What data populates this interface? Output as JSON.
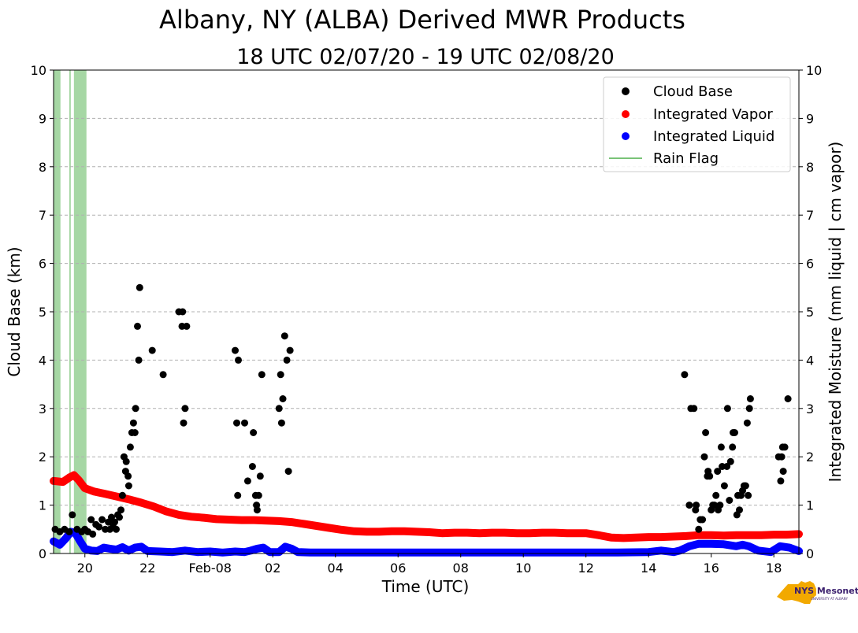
{
  "chart_data": {
    "type": "scatter",
    "title": "Albany, NY (ALBA) Derived MWR Products",
    "subtitle": "18 UTC 02/07/20 - 19 UTC 02/08/20",
    "xlabel": "Time (UTC)",
    "ylabel": "Cloud Base (km)",
    "ylabel_right": "Integrated Moisture (mm liquid | cm vapor)",
    "x_unit": "hours since 00 UTC 02/07/20",
    "xlim": [
      19.0,
      42.8
    ],
    "ylim": [
      0,
      10
    ],
    "grid": "horizontal dashed",
    "legend_position": "upper-right",
    "y_ticks": [
      "0",
      "1",
      "2",
      "3",
      "4",
      "5",
      "6",
      "7",
      "8",
      "9",
      "10"
    ],
    "x_ticks": [
      {
        "x": 20,
        "label": "20"
      },
      {
        "x": 22,
        "label": "22"
      },
      {
        "x": 24,
        "label": "Feb-08"
      },
      {
        "x": 26,
        "label": "02"
      },
      {
        "x": 28,
        "label": "04"
      },
      {
        "x": 30,
        "label": "06"
      },
      {
        "x": 32,
        "label": "08"
      },
      {
        "x": 34,
        "label": "10"
      },
      {
        "x": 36,
        "label": "12"
      },
      {
        "x": 38,
        "label": "14"
      },
      {
        "x": 40,
        "label": "16"
      },
      {
        "x": 42,
        "label": "18"
      }
    ],
    "series": [
      {
        "name": "Cloud Base",
        "type": "scatter",
        "color": "#000000",
        "points": [
          [
            19.05,
            0.5
          ],
          [
            19.2,
            0.45
          ],
          [
            19.35,
            0.5
          ],
          [
            19.5,
            0.45
          ],
          [
            19.6,
            0.8
          ],
          [
            19.75,
            0.5
          ],
          [
            19.9,
            0.45
          ],
          [
            20.0,
            0.5
          ],
          [
            20.1,
            0.45
          ],
          [
            20.2,
            0.7
          ],
          [
            20.25,
            0.4
          ],
          [
            20.35,
            0.6
          ],
          [
            20.45,
            0.55
          ],
          [
            20.55,
            0.7
          ],
          [
            20.65,
            0.5
          ],
          [
            20.75,
            0.65
          ],
          [
            20.8,
            0.5
          ],
          [
            20.85,
            0.75
          ],
          [
            20.9,
            0.55
          ],
          [
            20.95,
            0.65
          ],
          [
            21.0,
            0.5
          ],
          [
            21.05,
            0.8
          ],
          [
            21.1,
            0.75
          ],
          [
            21.15,
            0.9
          ],
          [
            21.2,
            1.2
          ],
          [
            21.25,
            2.0
          ],
          [
            21.3,
            1.7
          ],
          [
            21.32,
            1.9
          ],
          [
            21.38,
            1.6
          ],
          [
            21.4,
            1.4
          ],
          [
            21.45,
            2.2
          ],
          [
            21.5,
            2.5
          ],
          [
            21.55,
            2.7
          ],
          [
            21.6,
            2.5
          ],
          [
            21.62,
            3.0
          ],
          [
            21.68,
            4.7
          ],
          [
            21.72,
            4.0
          ],
          [
            21.75,
            5.5
          ],
          [
            22.15,
            4.2
          ],
          [
            22.5,
            3.7
          ],
          [
            23.0,
            5.0
          ],
          [
            23.1,
            4.7
          ],
          [
            23.12,
            5.0
          ],
          [
            23.15,
            2.7
          ],
          [
            23.2,
            3.0
          ],
          [
            23.25,
            4.7
          ],
          [
            24.8,
            4.2
          ],
          [
            24.85,
            2.7
          ],
          [
            24.88,
            1.2
          ],
          [
            24.9,
            4.0
          ],
          [
            25.1,
            2.7
          ],
          [
            25.2,
            1.5
          ],
          [
            25.35,
            1.8
          ],
          [
            25.38,
            2.5
          ],
          [
            25.45,
            1.2
          ],
          [
            25.48,
            1.0
          ],
          [
            25.5,
            0.9
          ],
          [
            25.55,
            1.2
          ],
          [
            25.6,
            1.6
          ],
          [
            25.65,
            3.7
          ],
          [
            26.2,
            3.0
          ],
          [
            26.25,
            3.7
          ],
          [
            26.28,
            2.7
          ],
          [
            26.32,
            3.2
          ],
          [
            26.38,
            4.5
          ],
          [
            26.45,
            4.0
          ],
          [
            26.5,
            1.7
          ],
          [
            26.55,
            4.2
          ],
          [
            39.15,
            3.7
          ],
          [
            39.3,
            1.0
          ],
          [
            39.35,
            3.0
          ],
          [
            39.45,
            3.0
          ],
          [
            39.5,
            0.9
          ],
          [
            39.52,
            1.0
          ],
          [
            39.6,
            0.5
          ],
          [
            39.65,
            0.7
          ],
          [
            39.72,
            0.7
          ],
          [
            39.78,
            2.0
          ],
          [
            39.82,
            2.5
          ],
          [
            39.88,
            1.6
          ],
          [
            39.9,
            1.7
          ],
          [
            39.95,
            1.6
          ],
          [
            40.0,
            0.9
          ],
          [
            40.05,
            1.0
          ],
          [
            40.1,
            1.0
          ],
          [
            40.15,
            1.2
          ],
          [
            40.2,
            1.7
          ],
          [
            40.22,
            0.9
          ],
          [
            40.28,
            1.0
          ],
          [
            40.32,
            2.2
          ],
          [
            40.35,
            1.8
          ],
          [
            40.42,
            1.4
          ],
          [
            40.5,
            1.8
          ],
          [
            40.52,
            3.0
          ],
          [
            40.58,
            1.1
          ],
          [
            40.62,
            1.9
          ],
          [
            40.68,
            2.2
          ],
          [
            40.7,
            2.5
          ],
          [
            40.75,
            2.5
          ],
          [
            40.82,
            0.8
          ],
          [
            40.85,
            1.2
          ],
          [
            40.9,
            0.9
          ],
          [
            40.95,
            1.2
          ],
          [
            41.0,
            1.3
          ],
          [
            41.05,
            1.4
          ],
          [
            41.1,
            1.4
          ],
          [
            41.15,
            2.7
          ],
          [
            41.18,
            1.2
          ],
          [
            41.22,
            3.0
          ],
          [
            41.25,
            3.2
          ],
          [
            42.15,
            2.0
          ],
          [
            42.22,
            1.5
          ],
          [
            42.25,
            2.0
          ],
          [
            42.28,
            2.2
          ],
          [
            42.3,
            1.7
          ],
          [
            42.35,
            2.2
          ],
          [
            42.45,
            3.2
          ]
        ]
      },
      {
        "name": "Integrated Vapor",
        "type": "line",
        "color": "#ff0000",
        "points": [
          [
            19.0,
            1.5
          ],
          [
            19.3,
            1.48
          ],
          [
            19.5,
            1.57
          ],
          [
            19.65,
            1.62
          ],
          [
            19.8,
            1.52
          ],
          [
            20.0,
            1.35
          ],
          [
            20.3,
            1.28
          ],
          [
            20.6,
            1.24
          ],
          [
            21.0,
            1.18
          ],
          [
            21.4,
            1.12
          ],
          [
            21.8,
            1.05
          ],
          [
            22.2,
            0.97
          ],
          [
            22.6,
            0.87
          ],
          [
            23.0,
            0.8
          ],
          [
            23.4,
            0.76
          ],
          [
            23.8,
            0.74
          ],
          [
            24.2,
            0.71
          ],
          [
            24.6,
            0.7
          ],
          [
            25.0,
            0.69
          ],
          [
            25.4,
            0.69
          ],
          [
            25.8,
            0.68
          ],
          [
            26.2,
            0.67
          ],
          [
            26.6,
            0.65
          ],
          [
            27.0,
            0.61
          ],
          [
            27.4,
            0.57
          ],
          [
            27.8,
            0.53
          ],
          [
            28.2,
            0.49
          ],
          [
            28.6,
            0.46
          ],
          [
            29.0,
            0.45
          ],
          [
            29.4,
            0.45
          ],
          [
            29.8,
            0.46
          ],
          [
            30.2,
            0.46
          ],
          [
            30.6,
            0.45
          ],
          [
            31.0,
            0.44
          ],
          [
            31.4,
            0.42
          ],
          [
            31.8,
            0.43
          ],
          [
            32.2,
            0.43
          ],
          [
            32.6,
            0.42
          ],
          [
            33.0,
            0.43
          ],
          [
            33.4,
            0.43
          ],
          [
            33.8,
            0.42
          ],
          [
            34.2,
            0.42
          ],
          [
            34.6,
            0.43
          ],
          [
            35.0,
            0.43
          ],
          [
            35.4,
            0.42
          ],
          [
            35.8,
            0.42
          ],
          [
            36.0,
            0.42
          ],
          [
            36.4,
            0.38
          ],
          [
            36.8,
            0.33
          ],
          [
            37.2,
            0.32
          ],
          [
            37.6,
            0.33
          ],
          [
            38.0,
            0.34
          ],
          [
            38.4,
            0.34
          ],
          [
            38.8,
            0.35
          ],
          [
            39.2,
            0.36
          ],
          [
            39.6,
            0.38
          ],
          [
            40.0,
            0.38
          ],
          [
            40.4,
            0.37
          ],
          [
            40.8,
            0.38
          ],
          [
            41.2,
            0.38
          ],
          [
            41.6,
            0.38
          ],
          [
            42.0,
            0.39
          ],
          [
            42.4,
            0.39
          ],
          [
            42.8,
            0.4
          ]
        ]
      },
      {
        "name": "Integrated Liquid",
        "type": "line",
        "color": "#0000ff",
        "points": [
          [
            19.0,
            0.25
          ],
          [
            19.2,
            0.18
          ],
          [
            19.4,
            0.32
          ],
          [
            19.55,
            0.45
          ],
          [
            19.7,
            0.42
          ],
          [
            19.85,
            0.25
          ],
          [
            20.0,
            0.1
          ],
          [
            20.2,
            0.06
          ],
          [
            20.4,
            0.05
          ],
          [
            20.6,
            0.12
          ],
          [
            20.8,
            0.1
          ],
          [
            21.0,
            0.08
          ],
          [
            21.2,
            0.13
          ],
          [
            21.4,
            0.06
          ],
          [
            21.6,
            0.12
          ],
          [
            21.8,
            0.14
          ],
          [
            22.0,
            0.05
          ],
          [
            22.4,
            0.04
          ],
          [
            22.8,
            0.03
          ],
          [
            23.2,
            0.06
          ],
          [
            23.6,
            0.03
          ],
          [
            24.0,
            0.04
          ],
          [
            24.4,
            0.02
          ],
          [
            24.8,
            0.04
          ],
          [
            25.1,
            0.03
          ],
          [
            25.3,
            0.06
          ],
          [
            25.5,
            0.1
          ],
          [
            25.7,
            0.12
          ],
          [
            25.9,
            0.03
          ],
          [
            26.2,
            0.03
          ],
          [
            26.4,
            0.14
          ],
          [
            26.6,
            0.1
          ],
          [
            26.8,
            0.03
          ],
          [
            27.2,
            0.02
          ],
          [
            28.0,
            0.02
          ],
          [
            30.0,
            0.02
          ],
          [
            32.0,
            0.02
          ],
          [
            34.0,
            0.02
          ],
          [
            36.0,
            0.02
          ],
          [
            37.0,
            0.02
          ],
          [
            38.0,
            0.03
          ],
          [
            38.4,
            0.06
          ],
          [
            38.8,
            0.03
          ],
          [
            39.0,
            0.06
          ],
          [
            39.3,
            0.15
          ],
          [
            39.6,
            0.2
          ],
          [
            40.0,
            0.2
          ],
          [
            40.4,
            0.19
          ],
          [
            40.8,
            0.15
          ],
          [
            41.0,
            0.18
          ],
          [
            41.2,
            0.15
          ],
          [
            41.5,
            0.06
          ],
          [
            41.9,
            0.03
          ],
          [
            42.2,
            0.15
          ],
          [
            42.5,
            0.12
          ],
          [
            42.8,
            0.05
          ]
        ]
      }
    ],
    "rain_flag": {
      "name": "Rain Flag",
      "color": "#4daf4a",
      "intervals": [
        [
          19.0,
          19.22
        ],
        [
          19.5,
          19.55
        ],
        [
          19.65,
          20.05
        ]
      ]
    }
  },
  "legend": {
    "items": [
      {
        "label": "Cloud Base",
        "color": "#000000",
        "kind": "marker"
      },
      {
        "label": "Integrated Vapor",
        "color": "#ff0000",
        "kind": "marker"
      },
      {
        "label": "Integrated Liquid",
        "color": "#0000ff",
        "kind": "marker"
      },
      {
        "label": "Rain Flag",
        "color": "#4daf4a",
        "kind": "line"
      }
    ]
  },
  "logo": {
    "text": "NYS Mesonet",
    "subtext": "UNIVERSITY AT ALBANY"
  }
}
